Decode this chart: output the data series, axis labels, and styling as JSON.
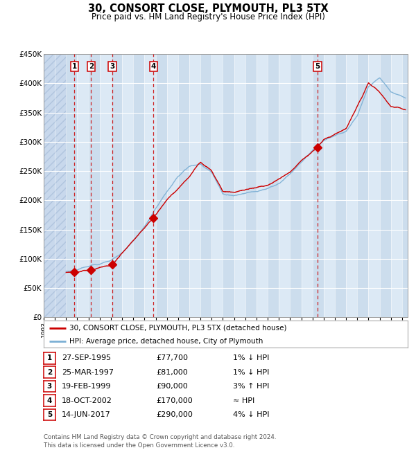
{
  "title": "30, CONSORT CLOSE, PLYMOUTH, PL3 5TX",
  "subtitle": "Price paid vs. HM Land Registry's House Price Index (HPI)",
  "footer": "Contains HM Land Registry data © Crown copyright and database right 2024.\nThis data is licensed under the Open Government Licence v3.0.",
  "legend_label_red": "30, CONSORT CLOSE, PLYMOUTH, PL3 5TX (detached house)",
  "legend_label_blue": "HPI: Average price, detached house, City of Plymouth",
  "transactions": [
    {
      "num": 1,
      "date": "27-SEP-1995",
      "price": 77700,
      "hpi_note": "1% ↓ HPI",
      "year": 1995.75
    },
    {
      "num": 2,
      "date": "25-MAR-1997",
      "price": 81000,
      "hpi_note": "1% ↓ HPI",
      "year": 1997.23
    },
    {
      "num": 3,
      "date": "19-FEB-1999",
      "price": 90000,
      "hpi_note": "3% ↑ HPI",
      "year": 1999.13
    },
    {
      "num": 4,
      "date": "18-OCT-2002",
      "price": 170000,
      "hpi_note": "≈ HPI",
      "year": 2002.8
    },
    {
      "num": 5,
      "date": "14-JUN-2017",
      "price": 290000,
      "hpi_note": "4% ↓ HPI",
      "year": 2017.45
    }
  ],
  "xmin": 1993.0,
  "xmax": 2025.5,
  "ymin": 0,
  "ymax": 450000,
  "yticks": [
    0,
    50000,
    100000,
    150000,
    200000,
    250000,
    300000,
    350000,
    400000,
    450000
  ],
  "ytick_labels": [
    "£0",
    "£50K",
    "£100K",
    "£150K",
    "£200K",
    "£250K",
    "£300K",
    "£350K",
    "£400K",
    "£450K"
  ],
  "hatch_end_year": 1995.0,
  "plot_bg": "#dce9f5",
  "grid_color": "#ffffff",
  "red_line_color": "#cc0000",
  "blue_line_color": "#7bafd4",
  "marker_color": "#cc0000",
  "dashed_line_color": "#cc0000",
  "label_box_edge": "#cc0000"
}
